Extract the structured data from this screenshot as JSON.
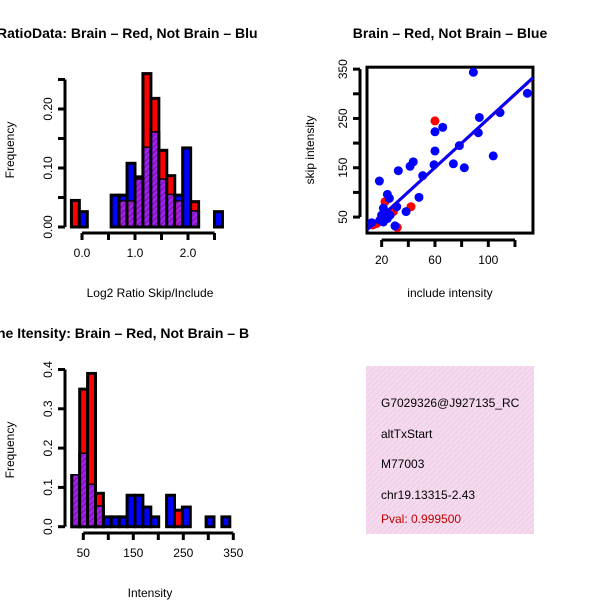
{
  "colors": {
    "brain": "#ff0000",
    "not_brain": "#0000ff",
    "overlap": "#a020f0",
    "pval": "#c00000",
    "info_bg": "#f8d8f0"
  },
  "chart_data": [
    {
      "type": "bar",
      "title": "RatioData: Brain – Red, Not Brain – Blu",
      "xlabel": "Log2 Ratio Skip/Include",
      "ylabel": "Frequency",
      "bin_start": -0.2,
      "bin_width": 0.15,
      "x_ticks": [
        0,
        0.5,
        1,
        1.5,
        2,
        2.5
      ],
      "x_tick_labels": [
        {
          "v": 0,
          "t": "0.0"
        },
        {
          "v": 1,
          "t": "1.0"
        },
        {
          "v": 2,
          "t": "2.0"
        }
      ],
      "y_ticks": [
        0,
        0.05,
        0.1,
        0.15,
        0.2,
        0.25
      ],
      "y_tick_labels": [
        {
          "v": 0,
          "t": "0.00"
        },
        {
          "v": 0.1,
          "t": "0.10"
        },
        {
          "v": 0.2,
          "t": "0.20"
        }
      ],
      "series": [
        {
          "name": "Brain",
          "color": "red",
          "values": [
            0.045,
            0,
            0,
            0,
            0,
            0,
            0.043,
            0.043,
            0.085,
            0.26,
            0.218,
            0.13,
            0.087,
            0.043,
            0,
            0.043,
            0,
            0,
            0
          ]
        },
        {
          "name": "Not Brain",
          "color": "blue",
          "values": [
            0,
            0.026,
            0,
            0,
            0,
            0.054,
            0.054,
            0.108,
            0.08,
            0.134,
            0.16,
            0.08,
            0.054,
            0.054,
            0.134,
            0.026,
            0,
            0,
            0.026
          ]
        }
      ]
    },
    {
      "type": "scatter",
      "title": "Brain – Red, Not Brain – Blue",
      "xlabel": "include intensity",
      "ylabel": "skip intensity",
      "xlim": [
        9,
        133.5
      ],
      "ylim": [
        17.5,
        354
      ],
      "x_ticks": [
        20,
        40,
        60,
        80,
        100,
        120
      ],
      "x_tick_labels": [
        {
          "v": 20,
          "t": "20"
        },
        {
          "v": 60,
          "t": "60"
        },
        {
          "v": 100,
          "t": "100"
        }
      ],
      "y_ticks": [
        50,
        100,
        150,
        200,
        250,
        300,
        350
      ],
      "y_tick_labels": [
        {
          "v": 50,
          "t": "50"
        },
        {
          "v": 150,
          "t": "150"
        },
        {
          "v": 250,
          "t": "250"
        },
        {
          "v": 350,
          "t": "350"
        }
      ],
      "series": [
        {
          "name": "Brain",
          "color": "red",
          "points": [
            [
              60,
              245
            ],
            [
              42,
              71
            ],
            [
              31.7,
              29
            ],
            [
              22.5,
              81
            ],
            [
              28.8,
              61
            ],
            [
              16.3,
              37
            ],
            [
              13.3,
              34
            ]
          ],
          "fit": {
            "slope": 2.47,
            "intercept": 2
          }
        },
        {
          "name": "Not Brain",
          "color": "blue",
          "points": [
            [
              88.8,
              343.6
            ],
            [
              129.3,
              301
            ],
            [
              93.3,
              252
            ],
            [
              108.8,
              262
            ],
            [
              65.8,
              232
            ],
            [
              60,
              223
            ],
            [
              92.5,
              221
            ],
            [
              78.3,
              195
            ],
            [
              60,
              184
            ],
            [
              103.7,
              174
            ],
            [
              43.7,
              162
            ],
            [
              41.3,
              153
            ],
            [
              73.8,
              158
            ],
            [
              82,
              150
            ],
            [
              59.3,
              156
            ],
            [
              32.5,
              144
            ],
            [
              50.8,
              134
            ],
            [
              18.3,
              123
            ],
            [
              48,
              90
            ],
            [
              38.3,
              61
            ],
            [
              24.3,
              96
            ],
            [
              25.8,
              88
            ],
            [
              31.3,
              71
            ],
            [
              21.3,
              68
            ],
            [
              22.5,
              61
            ],
            [
              20,
              54
            ],
            [
              24.3,
              47
            ],
            [
              18.8,
              44
            ],
            [
              12.5,
              38.5
            ],
            [
              30,
              32
            ],
            [
              26.3,
              54
            ],
            [
              21.3,
              40
            ]
          ],
          "fit": {
            "slope": 2.48,
            "intercept": 1.7
          }
        }
      ]
    },
    {
      "type": "bar",
      "title": "ne Itensity: Brain – Red, Not Brain – B",
      "xlabel": "Intensity",
      "ylabel": "Frequency",
      "bin_start": 27,
      "bin_width": 15.8,
      "x_ticks": [
        50,
        100,
        150,
        200,
        250,
        300,
        350
      ],
      "x_tick_labels": [
        {
          "v": 50,
          "t": "50"
        },
        {
          "v": 150,
          "t": "150"
        },
        {
          "v": 250,
          "t": "250"
        },
        {
          "v": 350,
          "t": "350"
        }
      ],
      "y_ticks": [
        0,
        0.1,
        0.2,
        0.3,
        0.4
      ],
      "y_tick_labels": [
        {
          "v": 0,
          "t": "0.0"
        },
        {
          "v": 0.1,
          "t": "0.1"
        },
        {
          "v": 0.2,
          "t": "0.2"
        },
        {
          "v": 0.3,
          "t": "0.3"
        },
        {
          "v": 0.4,
          "t": "0.4"
        }
      ],
      "series": [
        {
          "name": "Brain",
          "color": "red",
          "values": [
            0.13,
            0.35,
            0.39,
            0.085,
            0,
            0,
            0,
            0,
            0,
            0,
            0,
            0,
            0,
            0.042,
            0,
            0,
            0,
            0,
            0,
            0
          ]
        },
        {
          "name": "Not Brain",
          "color": "blue",
          "values": [
            0.13,
            0.185,
            0.106,
            0.051,
            0.025,
            0.025,
            0.025,
            0.08,
            0.08,
            0.05,
            0.025,
            0,
            0.08,
            0,
            0.05,
            0,
            0,
            0.025,
            0,
            0.025
          ]
        }
      ]
    }
  ],
  "info": {
    "id": "G7029326@J927135_RC",
    "event_type": "altTxStart",
    "accession": "M77003",
    "location": "chr19.13315-2.43",
    "pval": "Pval: 0.999500"
  }
}
